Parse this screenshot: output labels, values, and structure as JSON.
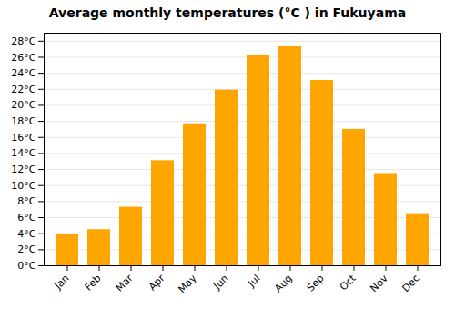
{
  "chart_data": {
    "type": "bar",
    "title": "Average monthly temperatures (°C ) in Fukuyama",
    "categories": [
      "Jan",
      "Feb",
      "Mar",
      "Apr",
      "May",
      "Jun",
      "Jul",
      "Aug",
      "Sep",
      "Oct",
      "Nov",
      "Dec"
    ],
    "values": [
      3.9,
      4.5,
      7.3,
      13.1,
      17.7,
      21.9,
      26.2,
      27.3,
      23.1,
      17.0,
      11.5,
      6.5
    ],
    "color": "#FFA500",
    "ylim": [
      0,
      29
    ],
    "yticks": [
      {
        "value": 0,
        "label": "0°C"
      },
      {
        "value": 2,
        "label": "2°C"
      },
      {
        "value": 4,
        "label": "4°C"
      },
      {
        "value": 6,
        "label": "6°C"
      },
      {
        "value": 8,
        "label": "8°C"
      },
      {
        "value": 10,
        "label": "10°C"
      },
      {
        "value": 12,
        "label": "12°C"
      },
      {
        "value": 14,
        "label": "14°C"
      },
      {
        "value": 16,
        "label": "16°C"
      },
      {
        "value": 18,
        "label": "18°C"
      },
      {
        "value": 20,
        "label": "20°C"
      },
      {
        "value": 22,
        "label": "22°C"
      },
      {
        "value": 24,
        "label": "24°C"
      },
      {
        "value": 26,
        "label": "26°C"
      },
      {
        "value": 28,
        "label": "28°C"
      }
    ],
    "grid": true
  }
}
